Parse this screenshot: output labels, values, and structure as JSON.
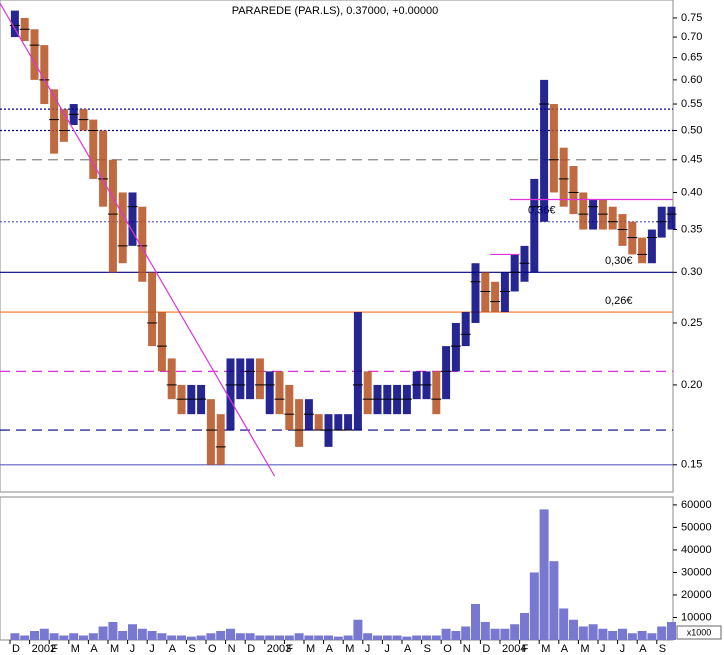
{
  "chart_data": {
    "type": "ohlc",
    "title": "PARAREDE (PAR.LS), 0.37000, +0.00000",
    "months": [
      "D",
      "2002",
      "F",
      "M",
      "A",
      "M",
      "J",
      "J",
      "A",
      "S",
      "O",
      "N",
      "D",
      "2003",
      "F",
      "M",
      "A",
      "M",
      "J",
      "J",
      "A",
      "S",
      "O",
      "N",
      "D",
      "2004",
      "F",
      "M",
      "A",
      "M",
      "J",
      "J",
      "A",
      "S"
    ],
    "high": [
      0.77,
      0.75,
      0.72,
      0.68,
      0.58,
      0.54,
      0.55,
      0.54,
      0.52,
      0.5,
      0.45,
      0.4,
      0.4,
      0.38,
      0.3,
      0.26,
      0.22,
      0.2,
      0.2,
      0.2,
      0.19,
      0.18,
      0.22,
      0.22,
      0.22,
      0.22,
      0.21,
      0.21,
      0.2,
      0.19,
      0.19,
      0.18,
      0.18,
      0.18,
      0.18,
      0.26,
      0.21,
      0.2,
      0.2,
      0.2,
      0.2,
      0.21,
      0.21,
      0.21,
      0.23,
      0.25,
      0.26,
      0.31,
      0.3,
      0.29,
      0.3,
      0.32,
      0.33,
      0.42,
      0.6,
      0.55,
      0.47,
      0.44,
      0.4,
      0.39,
      0.39,
      0.38,
      0.37,
      0.36,
      0.34,
      0.35,
      0.38,
      0.38
    ],
    "low": [
      0.7,
      0.69,
      0.6,
      0.55,
      0.46,
      0.48,
      0.51,
      0.5,
      0.42,
      0.38,
      0.3,
      0.31,
      0.33,
      0.29,
      0.23,
      0.21,
      0.19,
      0.18,
      0.18,
      0.18,
      0.15,
      0.15,
      0.17,
      0.19,
      0.19,
      0.19,
      0.18,
      0.18,
      0.17,
      0.16,
      0.17,
      0.17,
      0.16,
      0.17,
      0.17,
      0.17,
      0.18,
      0.18,
      0.18,
      0.18,
      0.18,
      0.19,
      0.19,
      0.18,
      0.19,
      0.21,
      0.23,
      0.25,
      0.26,
      0.26,
      0.26,
      0.28,
      0.29,
      0.3,
      0.36,
      0.4,
      0.38,
      0.37,
      0.35,
      0.35,
      0.35,
      0.35,
      0.33,
      0.32,
      0.31,
      0.31,
      0.34,
      0.35
    ],
    "close": [
      0.73,
      0.72,
      0.68,
      0.6,
      0.52,
      0.5,
      0.53,
      0.52,
      0.5,
      0.42,
      0.37,
      0.33,
      0.38,
      0.33,
      0.25,
      0.23,
      0.2,
      0.19,
      0.19,
      0.19,
      0.17,
      0.16,
      0.2,
      0.2,
      0.21,
      0.2,
      0.2,
      0.19,
      0.18,
      0.17,
      0.18,
      0.17,
      0.17,
      0.17,
      0.17,
      0.2,
      0.19,
      0.19,
      0.19,
      0.19,
      0.19,
      0.2,
      0.2,
      0.19,
      0.21,
      0.23,
      0.24,
      0.29,
      0.28,
      0.27,
      0.28,
      0.3,
      0.31,
      0.38,
      0.55,
      0.45,
      0.42,
      0.4,
      0.37,
      0.38,
      0.37,
      0.36,
      0.35,
      0.34,
      0.32,
      0.34,
      0.36,
      0.37
    ],
    "up_color": "#000080",
    "down_color": "#b4501e",
    "ylim": [
      0.136,
      0.8
    ],
    "log_scale": true,
    "yticks": [
      0.15,
      {
        "value": 0.2,
        "label": "0.20"
      },
      0.25,
      {
        "value": 0.3,
        "label": "0.30"
      },
      0.35,
      {
        "value": 0.4,
        "label": "0.40"
      },
      0.45,
      {
        "value": 0.5,
        "label": "0.50"
      },
      0.55,
      {
        "value": 0.6,
        "label": "0.60"
      },
      0.65,
      {
        "value": 0.7,
        "label": "0.70"
      },
      0.75
    ],
    "levels": [
      {
        "value": 0.54,
        "color": "#000099",
        "style": "dotted"
      },
      {
        "value": 0.5,
        "color": "#000099",
        "style": "dotted"
      },
      {
        "value": 0.45,
        "color": "#888888",
        "style": "dashed"
      },
      {
        "value": 0.36,
        "color": "#6666cc",
        "style": "dotted",
        "label": "0,36€",
        "label_color": "#999999"
      },
      {
        "value": 0.3,
        "color": "#000080",
        "style": "solid",
        "label": "0,30€",
        "label_color": "#000099"
      },
      {
        "value": 0.26,
        "color": "#f07020",
        "style": "solid",
        "label": "0,26€",
        "label_color": "#cc0000"
      },
      {
        "value": 0.21,
        "color": "#dd33dd",
        "style": "dashed"
      },
      {
        "value": 0.17,
        "color": "#000080",
        "style": "dashed"
      },
      {
        "value": 0.15,
        "color": "#6060c0",
        "style": "solid"
      }
    ],
    "trendlines": [
      {
        "x": [
          -0.5,
          13.5
        ],
        "y": [
          0.79,
          0.144
        ],
        "color": "#dd33dd"
      },
      {
        "x": [
          24.5,
          26
        ],
        "y": [
          0.32,
          0.32
        ],
        "color": "#dd33dd"
      },
      {
        "x": [
          25.5,
          33.8
        ],
        "y": [
          0.39,
          0.39
        ],
        "color": "#dd33dd"
      }
    ],
    "volume": [
      3000,
      2000,
      4000,
      5000,
      3000,
      2000,
      3000,
      2000,
      3000,
      6000,
      8000,
      4000,
      7000,
      5000,
      4000,
      3000,
      2000,
      2000,
      1500,
      2000,
      3000,
      4000,
      5000,
      3000,
      3000,
      2000,
      2000,
      2000,
      2000,
      3000,
      2000,
      2000,
      2000,
      1500,
      2000,
      9000,
      3000,
      2000,
      2000,
      2000,
      1500,
      2000,
      2000,
      2000,
      5000,
      4000,
      6000,
      16000,
      8000,
      5000,
      5000,
      7000,
      12000,
      30000,
      58000,
      35000,
      14000,
      9000,
      6000,
      7000,
      5000,
      4000,
      5000,
      3000,
      4000,
      3000,
      6000,
      8000
    ],
    "volume_color": "#7878d0",
    "volume_ylim": [
      0,
      63500
    ],
    "volume_yticks": [
      10000,
      20000,
      30000,
      40000,
      50000,
      60000
    ],
    "volume_unit": "x1000"
  }
}
